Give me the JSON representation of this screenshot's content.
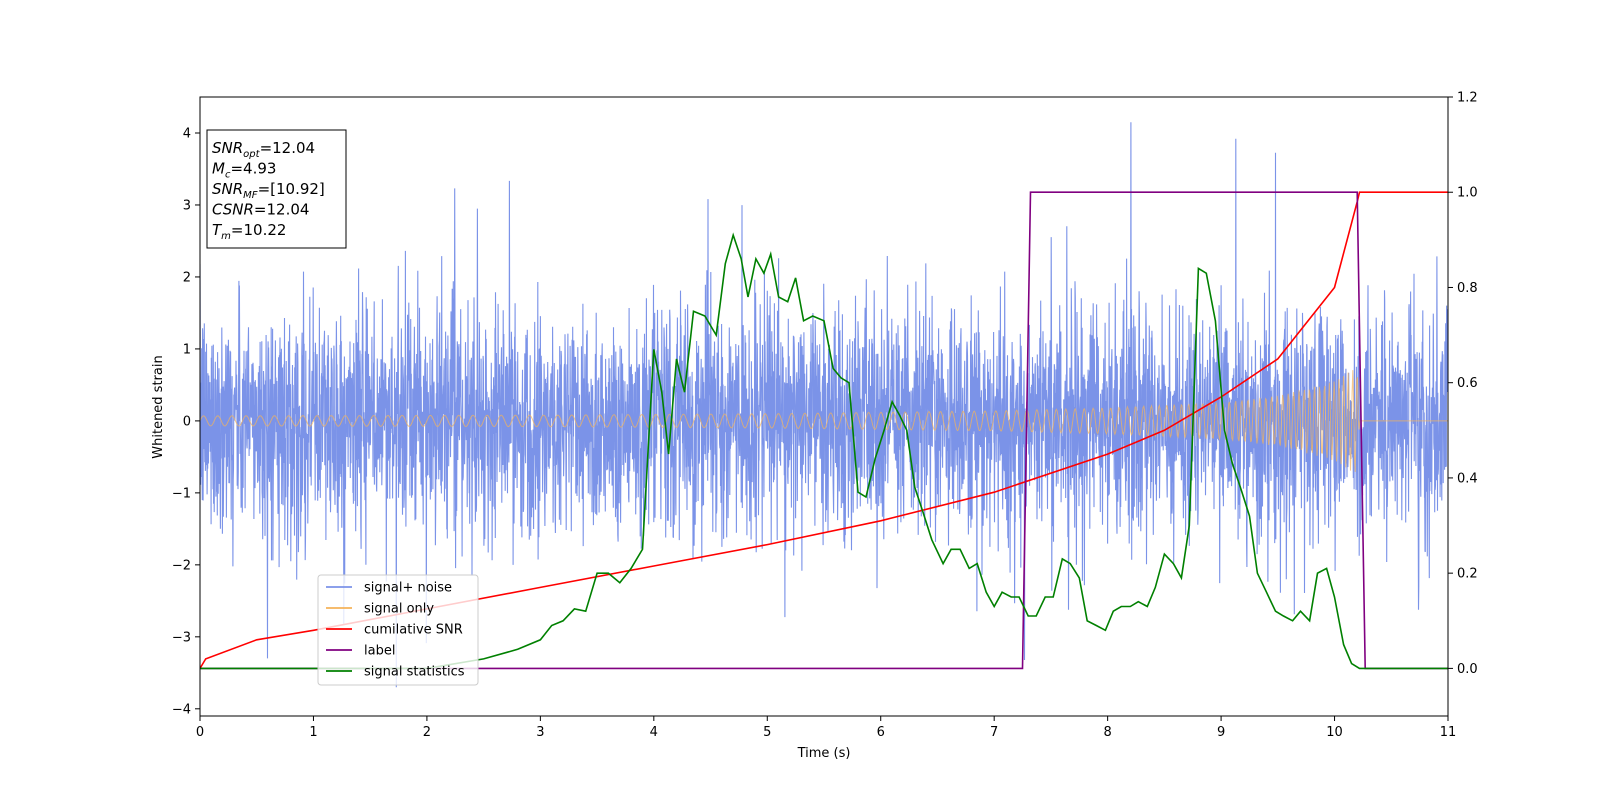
{
  "chart_data": {
    "type": "line",
    "xlabel": "Time (s)",
    "ylabel": "Whitened strain",
    "xlim": [
      0,
      11
    ],
    "ylim_left": [
      -4.1,
      4.5
    ],
    "ylim_right": [
      -0.1,
      1.2
    ],
    "xticks": [
      "0",
      "1",
      "2",
      "3",
      "4",
      "5",
      "6",
      "7",
      "8",
      "9",
      "10",
      "11"
    ],
    "yticks_left": [
      "−4",
      "−3",
      "−2",
      "−1",
      "0",
      "1",
      "2",
      "3",
      "4"
    ],
    "yticks_right": [
      "0.0",
      "0.2",
      "0.4",
      "0.6",
      "0.8",
      "1.0",
      "1.2"
    ],
    "info_box": [
      {
        "base": "SNR",
        "sub": "opt",
        "value": "=12.04"
      },
      {
        "base": "M",
        "sub": "c",
        "value": "=4.93"
      },
      {
        "base": "SNR",
        "sub": "MF",
        "value": "=[10.92]"
      },
      {
        "base": "CSNR",
        "sub": "",
        "value": "=12.04"
      },
      {
        "base": "T",
        "sub": "m",
        "value": "=10.22"
      }
    ],
    "legend": {
      "position": "lower-left",
      "entries": [
        {
          "label": "signal+ noise",
          "color": "#7b93e8"
        },
        {
          "label": "signal only",
          "color": "#f5b35a"
        },
        {
          "label": "cumilative SNR",
          "color": "#ff0000"
        },
        {
          "label": "label",
          "color": "#800080"
        },
        {
          "label": "signal statistics",
          "color": "#008000"
        }
      ]
    },
    "series": [
      {
        "name": "signal+ noise",
        "axis": "left",
        "color": "#7b93e8",
        "description_values": {
          "amplitude_typical": 2.2,
          "peak_max": 4.15,
          "peak_min": -3.7
        }
      },
      {
        "name": "signal only",
        "axis": "left",
        "color": "#f5b35a",
        "envelope": {
          "x": [
            0,
            3,
            5,
            7,
            8,
            9,
            9.5,
            10,
            10.2,
            10.22
          ],
          "amplitude": [
            0.07,
            0.08,
            0.1,
            0.14,
            0.18,
            0.26,
            0.35,
            0.55,
            0.75,
            0
          ]
        }
      },
      {
        "name": "cumilative SNR",
        "axis": "right",
        "color": "#ff0000",
        "x": [
          0,
          0.05,
          0.5,
          1,
          2,
          3,
          4,
          5,
          6,
          7,
          8,
          8.5,
          9,
          9.5,
          10,
          10.2,
          10.22,
          11
        ],
        "y": [
          0.0,
          0.02,
          0.06,
          0.08,
          0.125,
          0.17,
          0.215,
          0.26,
          0.31,
          0.37,
          0.45,
          0.5,
          0.57,
          0.65,
          0.8,
          0.98,
          1.0,
          1.0
        ]
      },
      {
        "name": "label",
        "axis": "right",
        "color": "#800080",
        "x": [
          0,
          7.25,
          7.32,
          10.2,
          10.27,
          11
        ],
        "y": [
          0,
          0,
          1,
          1,
          0,
          0
        ]
      },
      {
        "name": "signal statistics",
        "axis": "right",
        "color": "#008000",
        "x": [
          0,
          1,
          2,
          2.5,
          2.8,
          3,
          3.1,
          3.2,
          3.3,
          3.4,
          3.5,
          3.6,
          3.7,
          3.8,
          3.9,
          4.0,
          4.07,
          4.13,
          4.2,
          4.27,
          4.35,
          4.45,
          4.55,
          4.63,
          4.7,
          4.77,
          4.83,
          4.9,
          4.97,
          5.03,
          5.1,
          5.18,
          5.25,
          5.32,
          5.4,
          5.5,
          5.58,
          5.65,
          5.72,
          5.8,
          5.87,
          5.95,
          6.03,
          6.1,
          6.17,
          6.23,
          6.3,
          6.37,
          6.45,
          6.55,
          6.62,
          6.7,
          6.78,
          6.85,
          6.93,
          7.0,
          7.07,
          7.15,
          7.22,
          7.3,
          7.37,
          7.45,
          7.52,
          7.6,
          7.67,
          7.75,
          7.82,
          7.9,
          7.98,
          8.05,
          8.12,
          8.2,
          8.27,
          8.35,
          8.42,
          8.5,
          8.58,
          8.65,
          8.72,
          8.8,
          8.87,
          8.95,
          9.03,
          9.1,
          9.17,
          9.25,
          9.32,
          9.4,
          9.48,
          9.55,
          9.63,
          9.7,
          9.78,
          9.85,
          9.93,
          10.0,
          10.08,
          10.15,
          10.22,
          10.3,
          10.5,
          11
        ],
        "y": [
          0.0,
          0.0,
          0.0,
          0.02,
          0.04,
          0.06,
          0.09,
          0.1,
          0.125,
          0.12,
          0.2,
          0.2,
          0.18,
          0.21,
          0.25,
          0.67,
          0.58,
          0.45,
          0.65,
          0.58,
          0.75,
          0.74,
          0.7,
          0.85,
          0.91,
          0.86,
          0.78,
          0.86,
          0.83,
          0.87,
          0.78,
          0.77,
          0.82,
          0.73,
          0.74,
          0.73,
          0.63,
          0.61,
          0.6,
          0.37,
          0.36,
          0.44,
          0.5,
          0.56,
          0.53,
          0.5,
          0.38,
          0.33,
          0.27,
          0.22,
          0.25,
          0.25,
          0.21,
          0.22,
          0.16,
          0.13,
          0.16,
          0.15,
          0.15,
          0.11,
          0.11,
          0.15,
          0.15,
          0.23,
          0.22,
          0.19,
          0.1,
          0.09,
          0.08,
          0.12,
          0.13,
          0.13,
          0.14,
          0.13,
          0.17,
          0.24,
          0.22,
          0.19,
          0.3,
          0.84,
          0.83,
          0.73,
          0.5,
          0.43,
          0.38,
          0.32,
          0.2,
          0.16,
          0.12,
          0.11,
          0.1,
          0.12,
          0.1,
          0.2,
          0.21,
          0.15,
          0.05,
          0.01,
          0.0,
          0.0,
          0.0,
          0.0
        ]
      }
    ]
  }
}
